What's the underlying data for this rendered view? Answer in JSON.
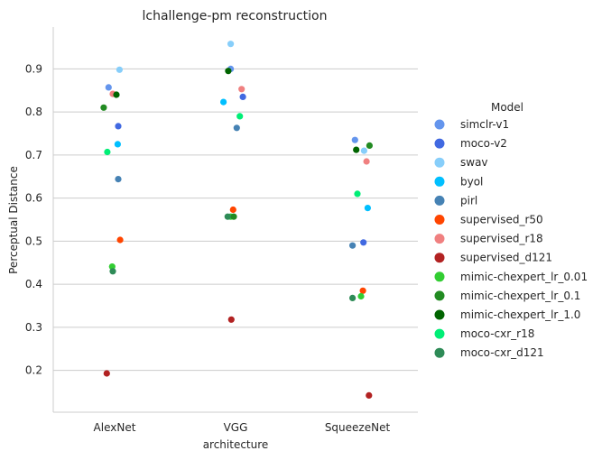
{
  "chart_data": {
    "type": "scatter",
    "title": "lchallenge-pm reconstruction",
    "xlabel": "architecture",
    "ylabel": "Perceptual Distance",
    "categories": [
      "AlexNet",
      "VGG",
      "SqueezeNet"
    ],
    "ylim": [
      0.1,
      1.0
    ],
    "yticks": [
      "0.2",
      "0.3",
      "0.4",
      "0.5",
      "0.6",
      "0.7",
      "0.8",
      "0.9"
    ],
    "grid": "horizontal",
    "legend_title": "Model",
    "legend_position": "right",
    "series": [
      {
        "name": "simclr-v1",
        "color": "#6495ED",
        "values": [
          0.857,
          0.9,
          0.735
        ],
        "jitter": [
          -0.1,
          -0.08,
          -0.04
        ]
      },
      {
        "name": "moco-v2",
        "color": "#4169E1",
        "values": [
          0.767,
          0.835,
          0.497
        ],
        "jitter": [
          0.06,
          0.12,
          0.1
        ]
      },
      {
        "name": "swav",
        "color": "#87CEFA",
        "values": [
          0.898,
          0.958,
          0.71
        ],
        "jitter": [
          0.08,
          -0.08,
          0.11
        ]
      },
      {
        "name": "byol",
        "color": "#00BFFF",
        "values": [
          0.725,
          0.823,
          0.577
        ],
        "jitter": [
          0.05,
          -0.2,
          0.17
        ]
      },
      {
        "name": "pirl",
        "color": "#4682B4",
        "values": [
          0.644,
          0.763,
          0.49
        ],
        "jitter": [
          0.06,
          0.02,
          -0.08
        ]
      },
      {
        "name": "supervised_r50",
        "color": "#FF4500",
        "values": [
          0.503,
          0.573,
          0.385
        ],
        "jitter": [
          0.09,
          -0.04,
          0.09
        ]
      },
      {
        "name": "supervised_r18",
        "color": "#F08080",
        "values": [
          0.842,
          0.853,
          0.685
        ],
        "jitter": [
          -0.03,
          0.1,
          0.15
        ]
      },
      {
        "name": "supervised_d121",
        "color": "#B22222",
        "values": [
          0.193,
          0.318,
          0.142
        ],
        "jitter": [
          -0.13,
          -0.07,
          0.19
        ]
      },
      {
        "name": "mimic-chexpert_lr_0.01",
        "color": "#32CD32",
        "values": [
          0.441,
          0.557,
          0.372
        ],
        "jitter": [
          -0.04,
          -0.08,
          0.06
        ]
      },
      {
        "name": "mimic-chexpert_lr_0.1",
        "color": "#228B22",
        "values": [
          0.81,
          0.557,
          0.722
        ],
        "jitter": [
          -0.18,
          -0.03,
          0.2
        ]
      },
      {
        "name": "mimic-chexpert_lr_1.0",
        "color": "#006400",
        "values": [
          0.84,
          0.895,
          0.712
        ],
        "jitter": [
          0.03,
          -0.12,
          -0.02
        ]
      },
      {
        "name": "moco-cxr_r18",
        "color": "#00EE76",
        "values": [
          0.707,
          0.79,
          0.61
        ],
        "jitter": [
          -0.12,
          0.07,
          0.0
        ]
      },
      {
        "name": "moco-cxr_d121",
        "color": "#2E8B57",
        "values": [
          0.43,
          0.557,
          0.368
        ],
        "jitter": [
          -0.03,
          -0.13,
          -0.08
        ]
      }
    ]
  }
}
